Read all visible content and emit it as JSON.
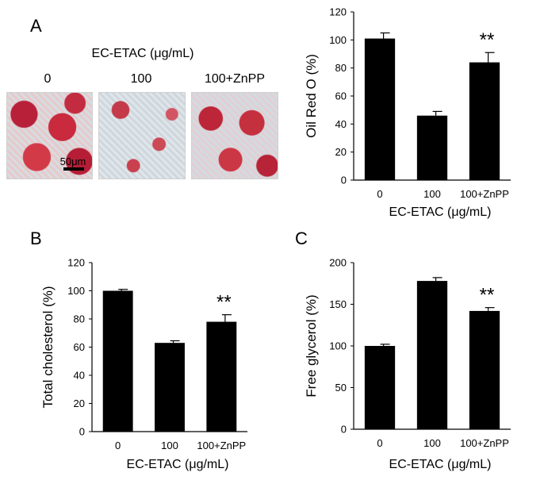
{
  "panels": {
    "A": "A",
    "B": "B",
    "C": "C"
  },
  "micrographs": {
    "treatment_label": "EC-ETAC (μg/mL)",
    "conditions": [
      "0",
      "100",
      "100+ZnPP"
    ],
    "scale_bar": "50μm",
    "stain_color": "#c8273a"
  },
  "chart_data": [
    {
      "panel": "A",
      "type": "bar",
      "categories": [
        "0",
        "100",
        "100+ZnPP"
      ],
      "values": [
        101,
        46,
        84
      ],
      "errors": [
        4,
        3,
        7
      ],
      "ylabel": "Oil Red O (%)",
      "xlabel": "EC-ETAC (μg/mL)",
      "ylim": [
        0,
        120
      ],
      "yticks": [
        0,
        20,
        40,
        60,
        80,
        100,
        120
      ],
      "annotations": [
        {
          "category": "100+ZnPP",
          "text": "**"
        }
      ],
      "bar_color": "#000000"
    },
    {
      "panel": "B",
      "type": "bar",
      "categories": [
        "0",
        "100",
        "100+ZnPP"
      ],
      "values": [
        100,
        63,
        78
      ],
      "errors": [
        1,
        1.5,
        5
      ],
      "ylabel": "Total cholesterol (%)",
      "xlabel": "EC-ETAC (μg/mL)",
      "ylim": [
        0,
        120
      ],
      "yticks": [
        0,
        20,
        40,
        60,
        80,
        100,
        120
      ],
      "annotations": [
        {
          "category": "100+ZnPP",
          "text": "**"
        }
      ],
      "bar_color": "#000000"
    },
    {
      "panel": "C",
      "type": "bar",
      "categories": [
        "0",
        "100",
        "100+ZnPP"
      ],
      "values": [
        100,
        178,
        142
      ],
      "errors": [
        2,
        4,
        4
      ],
      "ylabel": "Free glycerol (%)",
      "xlabel": "EC-ETAC (μg/mL)",
      "ylim": [
        0,
        200
      ],
      "yticks": [
        0,
        50,
        100,
        150,
        200
      ],
      "annotations": [
        {
          "category": "100+ZnPP",
          "text": "**"
        }
      ],
      "bar_color": "#000000"
    }
  ]
}
